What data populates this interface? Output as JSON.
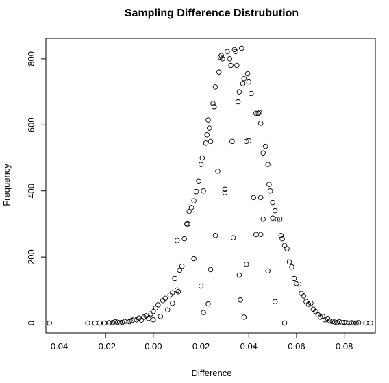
{
  "chart_data": {
    "type": "scatter",
    "title": "Sampling Difference Distrubution",
    "xlabel": "Difference",
    "ylabel": "Frequency",
    "xlim": [
      -0.045,
      0.093
    ],
    "ylim": [
      -30,
      862
    ],
    "x_ticks": [
      -0.04,
      -0.02,
      0.0,
      0.02,
      0.04,
      0.06,
      0.08
    ],
    "x_tick_labels": [
      "-0.04",
      "-0.02",
      "0.00",
      "0.02",
      "0.04",
      "0.06",
      "0.08"
    ],
    "y_ticks": [
      0,
      200,
      400,
      600,
      800
    ],
    "y_tick_labels": [
      "0",
      "200",
      "400",
      "600",
      "800"
    ],
    "grid": false,
    "marker": "open-circle",
    "points": [
      [
        -0.0435,
        0
      ],
      [
        -0.0275,
        0
      ],
      [
        -0.0245,
        0
      ],
      [
        -0.0225,
        0
      ],
      [
        -0.0205,
        0
      ],
      [
        -0.0185,
        1
      ],
      [
        -0.017,
        2
      ],
      [
        -0.016,
        4
      ],
      [
        -0.015,
        3
      ],
      [
        -0.014,
        1
      ],
      [
        -0.013,
        2
      ],
      [
        -0.012,
        5
      ],
      [
        -0.011,
        6
      ],
      [
        -0.01,
        4
      ],
      [
        -0.009,
        8
      ],
      [
        -0.008,
        12
      ],
      [
        -0.007,
        10
      ],
      [
        -0.006,
        15
      ],
      [
        -0.005,
        9
      ],
      [
        -0.004,
        18
      ],
      [
        -0.003,
        22
      ],
      [
        -0.002,
        14
      ],
      [
        -0.001,
        28
      ],
      [
        0.0,
        35
      ],
      [
        0.0,
        10
      ],
      [
        0.001,
        46
      ],
      [
        0.002,
        55
      ],
      [
        0.003,
        20
      ],
      [
        0.004,
        68
      ],
      [
        0.005,
        75
      ],
      [
        0.006,
        40
      ],
      [
        0.007,
        85
      ],
      [
        0.008,
        92
      ],
      [
        0.008,
        60
      ],
      [
        0.009,
        135
      ],
      [
        0.01,
        100
      ],
      [
        0.0105,
        95
      ],
      [
        0.011,
        160
      ],
      [
        0.012,
        172
      ],
      [
        0.013,
        255
      ],
      [
        0.014,
        300
      ],
      [
        0.0145,
        300
      ],
      [
        0.015,
        338
      ],
      [
        0.016,
        350
      ],
      [
        0.017,
        370
      ],
      [
        0.018,
        398
      ],
      [
        0.019,
        430
      ],
      [
        0.02,
        480
      ],
      [
        0.0205,
        500
      ],
      [
        0.021,
        400
      ],
      [
        0.022,
        545
      ],
      [
        0.0225,
        570
      ],
      [
        0.023,
        615
      ],
      [
        0.0235,
        590
      ],
      [
        0.024,
        550
      ],
      [
        0.025,
        665
      ],
      [
        0.0255,
        655
      ],
      [
        0.026,
        715
      ],
      [
        0.027,
        460
      ],
      [
        0.0275,
        760
      ],
      [
        0.028,
        805
      ],
      [
        0.0285,
        810
      ],
      [
        0.029,
        800
      ],
      [
        0.03,
        405
      ],
      [
        0.03,
        395
      ],
      [
        0.031,
        822
      ],
      [
        0.032,
        800
      ],
      [
        0.0325,
        780
      ],
      [
        0.033,
        550
      ],
      [
        0.0335,
        258
      ],
      [
        0.034,
        828
      ],
      [
        0.0345,
        822
      ],
      [
        0.035,
        780
      ],
      [
        0.0355,
        670
      ],
      [
        0.036,
        700
      ],
      [
        0.037,
        832
      ],
      [
        0.0375,
        725
      ],
      [
        0.038,
        740
      ],
      [
        0.039,
        550
      ],
      [
        0.0395,
        755
      ],
      [
        0.04,
        730
      ],
      [
        0.041,
        695
      ],
      [
        0.042,
        380
      ],
      [
        0.043,
        635
      ],
      [
        0.044,
        635
      ],
      [
        0.0445,
        638
      ],
      [
        0.045,
        605
      ],
      [
        0.046,
        515
      ],
      [
        0.047,
        535
      ],
      [
        0.048,
        480
      ],
      [
        0.0485,
        420
      ],
      [
        0.049,
        400
      ],
      [
        0.05,
        365
      ],
      [
        0.051,
        340
      ],
      [
        0.052,
        315
      ],
      [
        0.053,
        315
      ],
      [
        0.0535,
        265
      ],
      [
        0.054,
        255
      ],
      [
        0.055,
        235
      ],
      [
        0.056,
        225
      ],
      [
        0.057,
        185
      ],
      [
        0.058,
        170
      ],
      [
        0.059,
        135
      ],
      [
        0.06,
        120
      ],
      [
        0.061,
        118
      ],
      [
        0.062,
        90
      ],
      [
        0.063,
        82
      ],
      [
        0.064,
        65
      ],
      [
        0.065,
        57
      ],
      [
        0.066,
        60
      ],
      [
        0.067,
        42
      ],
      [
        0.068,
        35
      ],
      [
        0.069,
        25
      ],
      [
        0.07,
        18
      ],
      [
        0.071,
        20
      ],
      [
        0.072,
        10
      ],
      [
        0.073,
        14
      ],
      [
        0.074,
        6
      ],
      [
        0.075,
        5
      ],
      [
        0.076,
        3
      ],
      [
        0.077,
        2
      ],
      [
        0.078,
        4
      ],
      [
        0.079,
        1
      ],
      [
        0.08,
        2
      ],
      [
        0.081,
        1
      ],
      [
        0.082,
        0
      ],
      [
        0.083,
        1
      ],
      [
        0.084,
        0
      ],
      [
        0.085,
        0
      ],
      [
        0.086,
        1
      ],
      [
        0.089,
        0
      ],
      [
        0.091,
        0
      ],
      [
        0.01,
        250
      ],
      [
        0.017,
        195
      ],
      [
        0.02,
        112
      ],
      [
        0.021,
        32
      ],
      [
        0.023,
        58
      ],
      [
        0.024,
        162
      ],
      [
        0.026,
        265
      ],
      [
        0.036,
        145
      ],
      [
        0.0365,
        70
      ],
      [
        0.038,
        18
      ],
      [
        0.039,
        178
      ],
      [
        0.043,
        268
      ],
      [
        0.045,
        268
      ],
      [
        0.046,
        315
      ],
      [
        0.048,
        158
      ],
      [
        0.05,
        318
      ],
      [
        0.051,
        65
      ],
      [
        0.055,
        0
      ],
      [
        0.045,
        380
      ],
      [
        0.04,
        552
      ]
    ]
  }
}
